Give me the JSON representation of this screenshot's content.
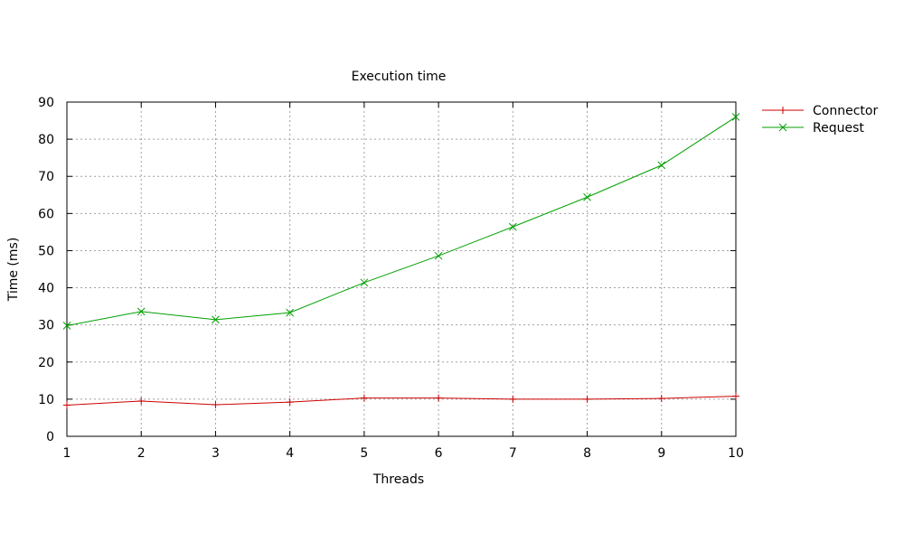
{
  "chart_data": {
    "type": "line",
    "title": "Execution time",
    "xlabel": "Threads",
    "ylabel": "Time (ms)",
    "x": [
      1,
      2,
      3,
      4,
      5,
      6,
      7,
      8,
      9,
      10
    ],
    "xlim": [
      1,
      10
    ],
    "ylim": [
      0,
      90
    ],
    "xticks": [
      1,
      2,
      3,
      4,
      5,
      6,
      7,
      8,
      9,
      10
    ],
    "yticks": [
      0,
      10,
      20,
      30,
      40,
      50,
      60,
      70,
      80,
      90
    ],
    "grid": true,
    "legend_position": "top-right-outside",
    "series": [
      {
        "name": "Connector",
        "color": "#cc0000",
        "marker": "plus",
        "values": [
          8.4,
          9.5,
          8.5,
          9.2,
          10.3,
          10.3,
          10.0,
          10.0,
          10.2,
          10.8
        ]
      },
      {
        "name": "Request",
        "color": "#00a000",
        "marker": "cross",
        "values": [
          29.8,
          33.6,
          31.4,
          33.3,
          41.4,
          48.6,
          56.4,
          64.4,
          73.0,
          86.0
        ]
      }
    ]
  }
}
